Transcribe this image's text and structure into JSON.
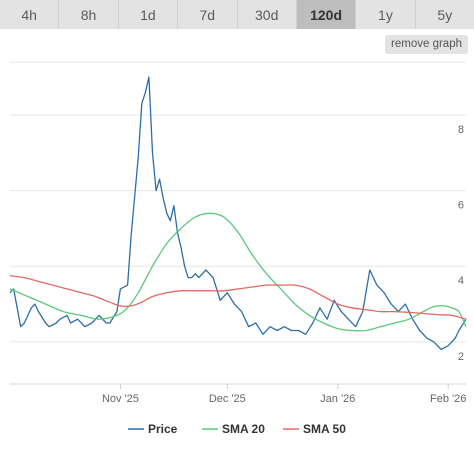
{
  "timeframes": {
    "items": [
      "4h",
      "8h",
      "1d",
      "7d",
      "30d",
      "120d",
      "1y",
      "5y"
    ],
    "active": "120d"
  },
  "remove_graph_label": "remove graph",
  "colors": {
    "price": "#2c6fa8",
    "sma20": "#5cc97a",
    "sma50": "#e06a62",
    "grid": "#e6e6e6"
  },
  "chart_data": {
    "type": "line",
    "x_ticks": [
      "Nov '25",
      "Dec '25",
      "Jan '26",
      "Feb '26"
    ],
    "y_ticks": [
      "2",
      "4",
      "6",
      "8"
    ],
    "ylim": [
      1.6,
      9.4
    ],
    "x_axis": "days, Oct 1 2025 to Feb 1 2026 at ticks",
    "legend": [
      "Price",
      "SMA 20",
      "SMA 50"
    ],
    "legend_position": "bottom",
    "series": [
      {
        "name": "Price",
        "x": [
          0,
          1,
          3,
          4,
          6,
          7,
          8,
          10,
          11,
          13,
          14,
          16,
          17,
          19,
          21,
          23,
          25,
          27,
          28,
          30,
          31,
          33,
          34,
          36,
          37,
          38,
          39,
          40,
          41,
          42,
          43,
          44,
          45,
          46,
          47,
          48,
          49,
          50,
          51,
          52,
          53,
          55,
          57,
          59,
          61,
          63,
          65,
          67,
          69,
          71,
          73,
          75,
          77,
          79,
          81,
          83,
          85,
          87,
          89,
          91,
          93,
          95,
          97,
          99,
          101,
          103,
          105,
          107,
          108,
          109,
          110,
          111,
          113,
          115,
          117,
          119,
          121,
          123,
          125,
          126,
          128
        ],
        "y": [
          3.3,
          3.4,
          2.4,
          2.5,
          2.9,
          3.0,
          2.8,
          2.5,
          2.4,
          2.5,
          2.6,
          2.7,
          2.5,
          2.6,
          2.4,
          2.5,
          2.7,
          2.5,
          2.5,
          2.8,
          3.4,
          3.5,
          4.8,
          6.9,
          8.3,
          8.6,
          9.0,
          7.0,
          6.0,
          6.3,
          5.8,
          5.4,
          5.2,
          5.6,
          4.9,
          4.5,
          4.0,
          3.7,
          3.7,
          3.8,
          3.7,
          3.9,
          3.7,
          3.1,
          3.3,
          3.0,
          2.8,
          2.4,
          2.5,
          2.2,
          2.4,
          2.3,
          2.4,
          2.3,
          2.3,
          2.2,
          2.5,
          2.9,
          2.6,
          3.1,
          2.8,
          2.6,
          2.4,
          2.8,
          3.9,
          3.5,
          3.3,
          3.0,
          2.9,
          2.8,
          2.9,
          3.0,
          2.6,
          2.3,
          2.1,
          2.0,
          1.8,
          1.9,
          2.1,
          2.3,
          2.6
        ]
      },
      {
        "name": "SMA 20",
        "x": [
          0,
          5,
          10,
          15,
          20,
          25,
          30,
          33,
          36,
          40,
          44,
          48,
          52,
          56,
          60,
          64,
          68,
          72,
          76,
          80,
          84,
          88,
          92,
          96,
          100,
          104,
          108,
          112,
          116,
          118,
          120,
          122,
          124,
          126,
          128
        ],
        "y": [
          3.4,
          3.2,
          3.0,
          2.8,
          2.7,
          2.6,
          2.7,
          2.9,
          3.3,
          4.0,
          4.6,
          5.0,
          5.3,
          5.4,
          5.3,
          4.9,
          4.3,
          3.8,
          3.4,
          3.0,
          2.7,
          2.5,
          2.35,
          2.3,
          2.3,
          2.4,
          2.5,
          2.6,
          2.8,
          2.9,
          2.95,
          2.95,
          2.9,
          2.8,
          2.4
        ]
      },
      {
        "name": "SMA 50",
        "x": [
          0,
          4,
          8,
          12,
          16,
          20,
          24,
          28,
          31,
          34,
          37,
          40,
          44,
          48,
          52,
          56,
          60,
          64,
          68,
          72,
          76,
          80,
          84,
          88,
          92,
          96,
          100,
          104,
          108,
          112,
          116,
          120,
          124,
          128
        ],
        "y": [
          3.75,
          3.7,
          3.6,
          3.5,
          3.4,
          3.3,
          3.2,
          3.05,
          2.95,
          2.95,
          3.05,
          3.2,
          3.3,
          3.35,
          3.35,
          3.35,
          3.35,
          3.4,
          3.45,
          3.5,
          3.5,
          3.5,
          3.4,
          3.2,
          3.0,
          2.9,
          2.85,
          2.8,
          2.8,
          2.78,
          2.75,
          2.72,
          2.7,
          2.6
        ]
      }
    ]
  }
}
